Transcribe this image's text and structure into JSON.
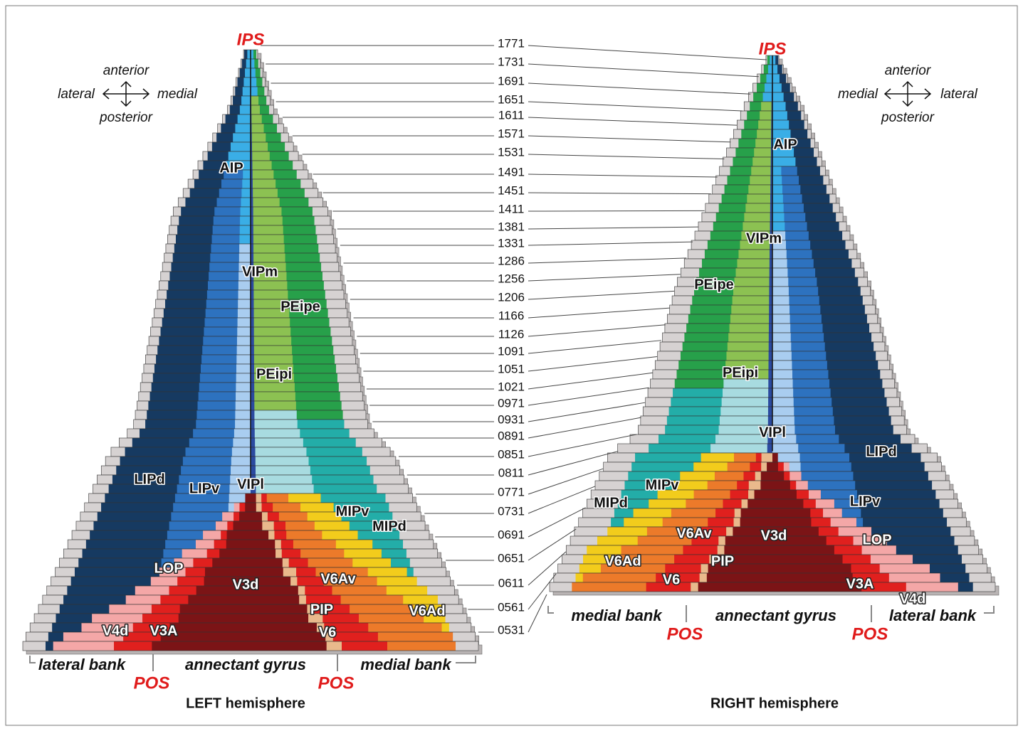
{
  "sections": [
    "1771",
    "1731",
    "1691",
    "1651",
    "1611",
    "1571",
    "1531",
    "1491",
    "1451",
    "1411",
    "1381",
    "1331",
    "1286",
    "1256",
    "1206",
    "1166",
    "1126",
    "1091",
    "1051",
    "1021",
    "0971",
    "0931",
    "0891",
    "0851",
    "0811",
    "0771",
    "0731",
    "0691",
    "0651",
    "0611",
    "0561",
    "0531"
  ],
  "left": {
    "title": "LEFT hemisphere",
    "sulcus": "IPS",
    "orientation": {
      "top": "anterior",
      "left": "lateral",
      "right": "medial",
      "bottom": "posterior"
    },
    "areas": [
      "AIP",
      "VIPm",
      "PEipe",
      "PEipi",
      "LIPd",
      "LIPv",
      "VIPl",
      "MIPv",
      "MIPd",
      "LOP",
      "V3d",
      "V6Av",
      "PIP",
      "V6Ad",
      "V4d",
      "V3A",
      "V6"
    ],
    "banks": [
      "lateral bank",
      "annectant gyrus",
      "medial bank"
    ],
    "pos": [
      "POS",
      "POS"
    ]
  },
  "right": {
    "title": "RIGHT hemisphere",
    "sulcus": "IPS",
    "orientation": {
      "top": "anterior",
      "left": "medial",
      "right": "lateral",
      "bottom": "posterior"
    },
    "areas": [
      "AIP",
      "VIPm",
      "PEipe",
      "PEipi",
      "VIPl",
      "LIPd",
      "MIPv",
      "LIPv",
      "MIPd",
      "V6Av",
      "V3d",
      "LOP",
      "V6Ad",
      "PIP",
      "V6",
      "V3A",
      "V4d"
    ],
    "banks": [
      "medial bank",
      "annectant gyrus",
      "lateral bank"
    ],
    "pos": [
      "POS",
      "POS"
    ]
  }
}
